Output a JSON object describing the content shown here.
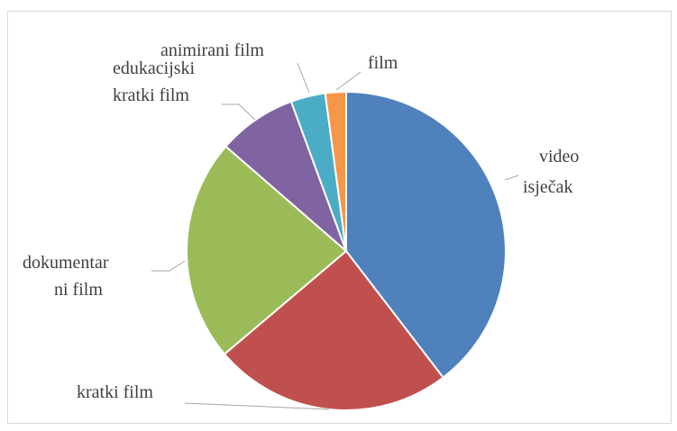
{
  "chart_data": {
    "type": "pie",
    "categories": [
      "video\nisječak",
      "kratki film",
      "dokumentar\nni film",
      "edukacijski\nkratki film",
      "animirani film",
      "film"
    ],
    "values": [
      39.6,
      24.2,
      22.6,
      8.0,
      3.5,
      2.1
    ],
    "colors": [
      "#4f81bd",
      "#c0504d",
      "#9bbb59",
      "#8064a2",
      "#4bacc6",
      "#f79646"
    ]
  }
}
